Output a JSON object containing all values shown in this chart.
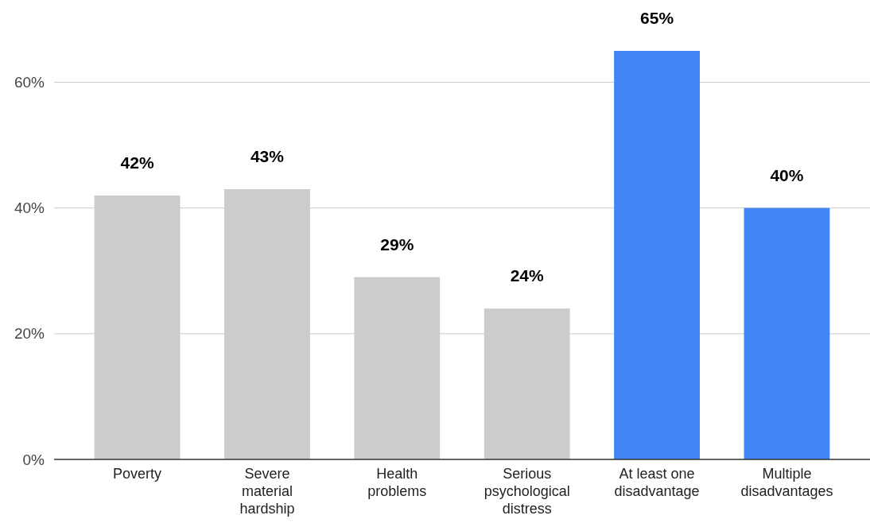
{
  "chart_data": {
    "type": "bar",
    "categories": [
      "Poverty",
      "Severe material hardship",
      "Health problems",
      "Serious psychological distress",
      "At least one disadvantage",
      "Multiple disadvantages"
    ],
    "values": [
      42,
      43,
      29,
      24,
      65,
      40
    ],
    "colors": [
      "#cccccc",
      "#cccccc",
      "#cccccc",
      "#cccccc",
      "#4285f4",
      "#4285f4"
    ],
    "value_labels": [
      "42%",
      "43%",
      "29%",
      "24%",
      "65%",
      "40%"
    ],
    "ylim": [
      0,
      65
    ],
    "yticks": [
      {
        "value": 0,
        "label": "0%"
      },
      {
        "value": 20,
        "label": "20%"
      },
      {
        "value": 40,
        "label": "40%"
      },
      {
        "value": 60,
        "label": "60%"
      }
    ],
    "grid": "y"
  }
}
